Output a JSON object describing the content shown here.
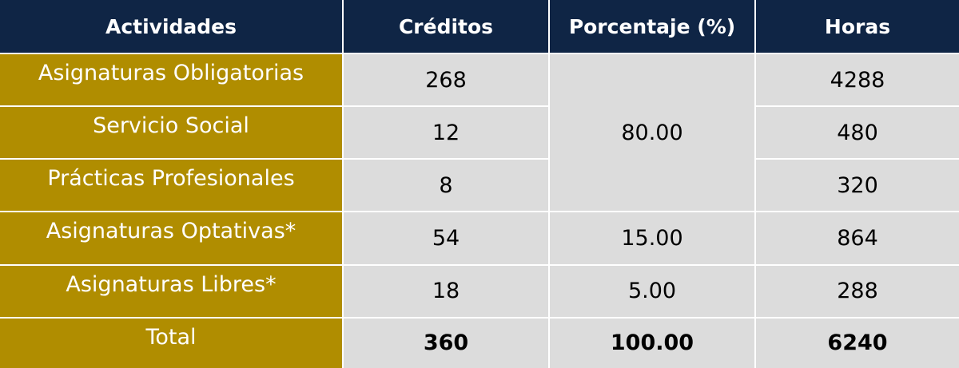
{
  "table": {
    "headers": [
      "Actividades",
      "Créditos",
      "Porcentaje (%)",
      "Horas"
    ],
    "rows": [
      {
        "actividad": "Asignaturas Obligatorias",
        "creditos": "268",
        "horas": "4288"
      },
      {
        "actividad": "Servicio Social",
        "creditos": "12",
        "horas": "480"
      },
      {
        "actividad": "Prácticas Profesionales",
        "creditos": "8",
        "horas": "320"
      },
      {
        "actividad": "Asignaturas Optativas*",
        "creditos": "54",
        "porcentaje": "15.00",
        "horas": "864"
      },
      {
        "actividad": "Asignaturas Libres*",
        "creditos": "18",
        "porcentaje": "5.00",
        "horas": "288"
      }
    ],
    "merged_percentage": "80.00",
    "total": {
      "actividad": "Total",
      "creditos": "360",
      "porcentaje": "100.00",
      "horas": "6240"
    }
  },
  "colors": {
    "header_bg": "#0f2545",
    "activity_bg": "#b08d00",
    "cell_bg": "#dcdcdc"
  }
}
